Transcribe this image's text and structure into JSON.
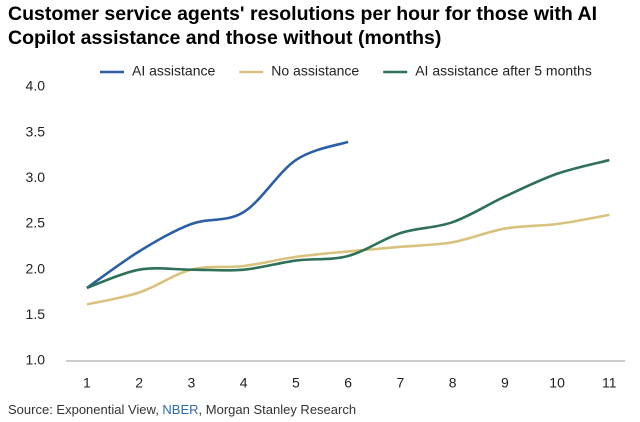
{
  "chart_data": {
    "type": "line",
    "title": "Customer service agents' resolutions per hour for those with AI Copilot assistance and those without (months)",
    "x": [
      1,
      2,
      3,
      4,
      5,
      6,
      7,
      8,
      9,
      10,
      11
    ],
    "series": [
      {
        "name": "AI assistance",
        "color": "#2b5fa6",
        "values": [
          1.8,
          2.2,
          2.5,
          2.63,
          3.2,
          3.4,
          null,
          null,
          null,
          null,
          null
        ]
      },
      {
        "name": "No assistance",
        "color": "#d9c27e",
        "values": [
          1.62,
          1.75,
          2.0,
          2.04,
          2.14,
          2.2,
          2.25,
          2.3,
          2.45,
          2.5,
          2.6
        ]
      },
      {
        "name": "AI assistance after 5 months",
        "color": "#2e7156",
        "values": [
          1.8,
          2.0,
          2.0,
          2.0,
          2.1,
          2.15,
          2.4,
          2.52,
          2.8,
          3.05,
          3.2
        ]
      }
    ],
    "xlim": [
      0.6,
      11.3
    ],
    "xticks": [
      1,
      2,
      3,
      4,
      5,
      6,
      7,
      8,
      9,
      10,
      11
    ],
    "ylim": [
      1,
      4
    ],
    "yticks": [
      {
        "value": 1,
        "label": "1.0"
      },
      1.5,
      {
        "value": 2,
        "label": "2.0"
      },
      2.5,
      {
        "value": 3,
        "label": "3.0"
      },
      3.5,
      {
        "value": 4,
        "label": "4.0"
      }
    ],
    "grid": false,
    "legend": "top",
    "source": [
      "Source: Exponential View, ",
      "NBER",
      ", Morgan Stanley Research"
    ]
  }
}
